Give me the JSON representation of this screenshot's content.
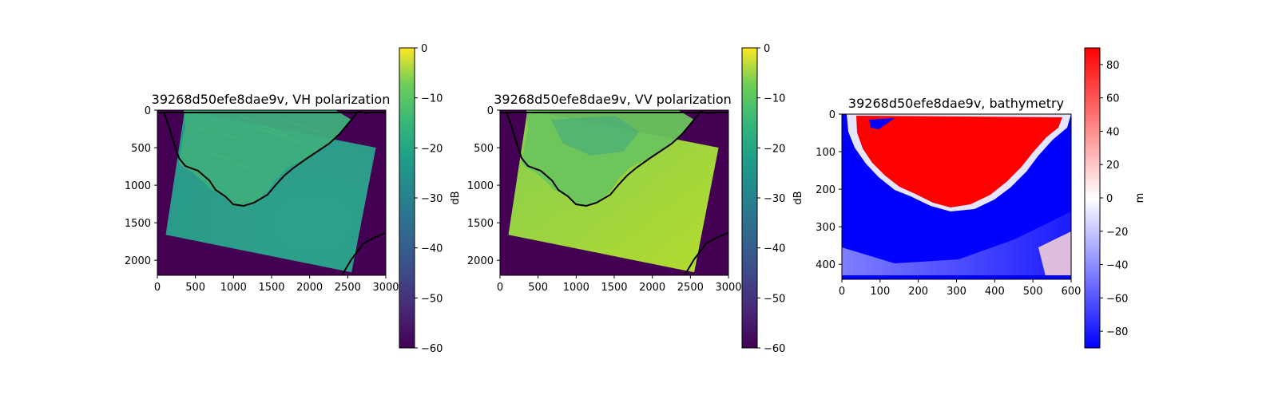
{
  "chart_data": [
    {
      "type": "heatmap",
      "title": "39268d50efe8dae9v, VH polarization",
      "xlabel": "",
      "ylabel": "",
      "xlim": [
        0,
        3000
      ],
      "ylim": [
        2200,
        0
      ],
      "x_ticks": [
        "0",
        "500",
        "1000",
        "1500",
        "2000",
        "2500",
        "3000"
      ],
      "y_ticks": [
        "0",
        "500",
        "1000",
        "1500",
        "2000"
      ],
      "colormap": "viridis",
      "colorbar": {
        "label": "dB",
        "range": [
          -60,
          0
        ],
        "ticks": [
          "−60",
          "−50",
          "−40",
          "−30",
          "−20",
          "−10",
          "0"
        ]
      },
      "swath_corners": [
        [
          360,
          0
        ],
        [
          2870,
          500
        ],
        [
          2550,
          2160
        ],
        [
          110,
          1660
        ]
      ],
      "values": {
        "background": -60,
        "land": -15,
        "sea": -27
      },
      "colors": {
        "background": "#440154",
        "land": "#3fae7d",
        "sea": "#2a9d8a",
        "coastline": "#000000"
      }
    },
    {
      "type": "heatmap",
      "title": "39268d50efe8dae9v, VV polarization",
      "xlabel": "",
      "ylabel": "",
      "xlim": [
        0,
        3000
      ],
      "ylim": [
        2200,
        0
      ],
      "x_ticks": [
        "0",
        "500",
        "1000",
        "1500",
        "2000",
        "2500",
        "3000"
      ],
      "y_ticks": [
        "0",
        "500",
        "1000",
        "1500",
        "2000"
      ],
      "colormap": "viridis",
      "colorbar": {
        "label": "dB",
        "range": [
          -60,
          0
        ],
        "ticks": [
          "−60",
          "−50",
          "−40",
          "−30",
          "−20",
          "−10",
          "0"
        ]
      },
      "swath_corners": [
        [
          360,
          0
        ],
        [
          2870,
          500
        ],
        [
          2550,
          2160
        ],
        [
          110,
          1660
        ]
      ],
      "values": {
        "background": -60,
        "land": -17,
        "sea": -8
      },
      "colors": {
        "background": "#440154",
        "land": "#6cc45d",
        "sea": "#a5d63a",
        "coastline": "#000000"
      }
    },
    {
      "type": "heatmap",
      "title": "39268d50efe8dae9v, bathymetry",
      "xlabel": "",
      "ylabel": "",
      "xlim": [
        0,
        600
      ],
      "ylim": [
        440,
        0
      ],
      "x_ticks": [
        "0",
        "100",
        "200",
        "300",
        "400",
        "500",
        "600"
      ],
      "y_ticks": [
        "0",
        "100",
        "200",
        "300",
        "400"
      ],
      "colormap": "bwr",
      "colorbar": {
        "label": "m",
        "range": [
          -90,
          90
        ],
        "ticks": [
          "−80",
          "−60",
          "−40",
          "−20",
          "0",
          "20",
          "40",
          "60",
          "80"
        ]
      },
      "values": {
        "land": 90,
        "deep_sea": -90
      },
      "colors": {
        "land": "#ff0000",
        "sea": "#0000ff",
        "shallow": "#ffffff"
      }
    }
  ]
}
